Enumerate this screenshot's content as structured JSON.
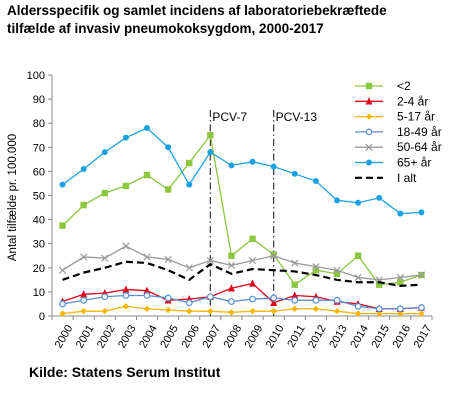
{
  "page": {
    "title_line1": "Aldersspecifik og samlet incidens af laboratoriebekræftede",
    "title_line2": "tilfælde af invasiv pneumokoksygdom, 2000-2017",
    "source": "Kilde: Statens Serum Institut"
  },
  "chart_data": {
    "type": "line",
    "title": "Aldersspecifik og samlet incidens af laboratoriebekræftede tilfælde af invasiv pneumokoksygdom, 2000-2017",
    "xlabel": "",
    "ylabel": "Antal tilfælde pr. 100.000",
    "x": [
      "2000",
      "2001",
      "2002",
      "2003",
      "2004",
      "2005",
      "2006",
      "2007",
      "2008",
      "2009",
      "2010",
      "2011",
      "2012",
      "2013",
      "2014",
      "2015",
      "2016",
      "2017"
    ],
    "ylim": [
      0,
      100
    ],
    "yticks": [
      0,
      10,
      20,
      30,
      40,
      50,
      60,
      70,
      80,
      90,
      100
    ],
    "grid": false,
    "legend_position": "top-right",
    "annotations": [
      {
        "label": "PCV-7",
        "x": "2007"
      },
      {
        "label": "PCV-13",
        "x": "2010"
      }
    ],
    "series": [
      {
        "name": "<2",
        "color": "#8dc63f",
        "marker": "square",
        "values": [
          37.5,
          46,
          51,
          54,
          58.5,
          52.5,
          63.5,
          75,
          25,
          32,
          25.5,
          13,
          19,
          17.5,
          25,
          13,
          14,
          17
        ]
      },
      {
        "name": "2-4 år",
        "color": "#e3001b",
        "marker": "triangle",
        "values": [
          6,
          9,
          9.5,
          11,
          10.5,
          6.5,
          7,
          8,
          11.5,
          13.5,
          5.5,
          8.5,
          8,
          6,
          5,
          3,
          3,
          3.5
        ]
      },
      {
        "name": "5-17 år",
        "color": "#f7b500",
        "marker": "diamond",
        "values": [
          1,
          2,
          2,
          4,
          3,
          2.5,
          2,
          2,
          1.5,
          2,
          2,
          3,
          3,
          2,
          1,
          1,
          1,
          1
        ]
      },
      {
        "name": "18-49 år",
        "color": "#5b8fd1",
        "marker": "open-circle",
        "values": [
          5,
          6.5,
          8,
          8.5,
          8.5,
          7.5,
          5.5,
          8,
          6,
          7,
          7.5,
          6.5,
          6.5,
          6.5,
          4,
          3,
          3,
          3.5
        ]
      },
      {
        "name": "50-64 år",
        "color": "#999999",
        "marker": "x",
        "values": [
          19,
          24.5,
          24,
          29,
          24.5,
          23.5,
          20,
          23,
          21,
          23,
          25,
          22,
          20.5,
          19,
          16,
          15,
          16,
          17
        ]
      },
      {
        "name": "65+ år",
        "color": "#1ba1e2",
        "marker": "circle",
        "values": [
          54.5,
          61,
          68,
          74,
          78,
          70,
          54.5,
          68,
          62.5,
          64,
          62,
          59,
          56,
          48,
          47,
          49,
          42.5,
          43
        ]
      },
      {
        "name": "I alt",
        "color": "#000000",
        "marker": "none",
        "dashed": true,
        "values": [
          15,
          18,
          20,
          22.5,
          22,
          19,
          15,
          21.5,
          17.5,
          19.5,
          19,
          18.5,
          17,
          15,
          14,
          14,
          12.5,
          13
        ]
      }
    ]
  }
}
